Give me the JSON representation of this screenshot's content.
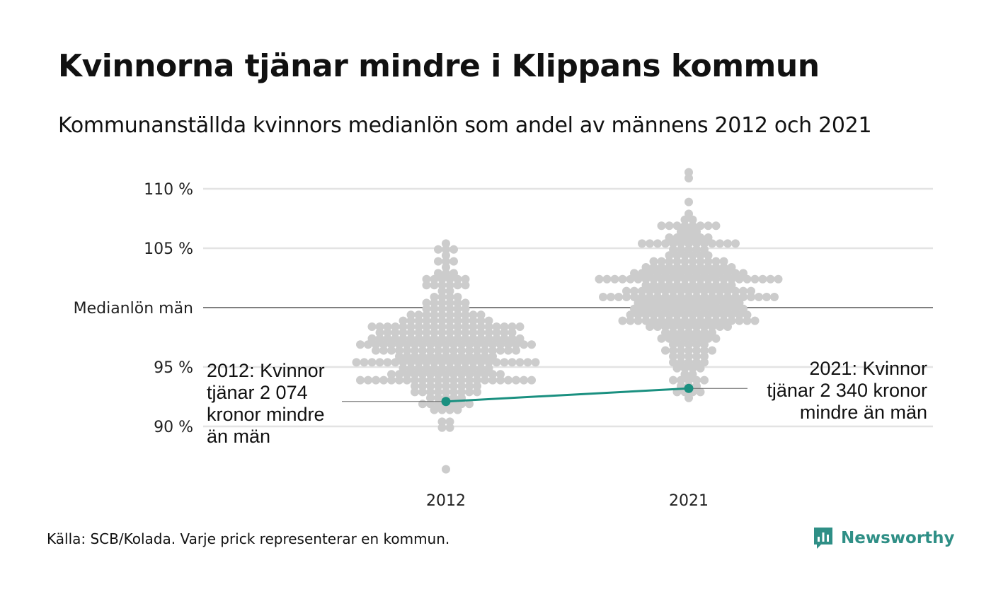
{
  "title": "Kvinnorna tjänar mindre i Klippans kommun",
  "subtitle": "Kommunanställda kvinnors medianlön som andel av männens 2012 och 2021",
  "source": "Källa: SCB/Kolada. Varje prick representerar en kommun.",
  "logo": {
    "text": "Newsworthy",
    "icon": "bar-chart-icon",
    "color": "#2f8f86"
  },
  "chart_data": {
    "type": "scatter",
    "title": "Kvinnorna tjänar mindre i Klippans kommun",
    "subtitle": "Kommunanställda kvinnors medianlön som andel av männens 2012 och 2021",
    "categories": [
      "2012",
      "2021"
    ],
    "ylim": [
      86,
      112
    ],
    "y_ticks": [
      {
        "value": 90,
        "label": "90 %"
      },
      {
        "value": 95,
        "label": "95 %"
      },
      {
        "value": 100,
        "label": "Medianlön män"
      },
      {
        "value": 105,
        "label": "105 %"
      },
      {
        "value": 110,
        "label": "110 %"
      }
    ],
    "grid": true,
    "reference_line": 100,
    "highlight": {
      "name": "Klippan",
      "color": "#1a9080",
      "values": [
        {
          "category": "2012",
          "value": 92.1
        },
        {
          "category": "2021",
          "value": 93.2
        }
      ]
    },
    "annotations": [
      {
        "category": "2012",
        "lines": [
          "2012: Kvinnor",
          "tjänar 2 074",
          "kronor mindre",
          "än män"
        ]
      },
      {
        "category": "2021",
        "lines": [
          "2021: Kvinnor",
          "tjänar 2 340 kronor",
          "mindre än män"
        ]
      }
    ],
    "distribution": {
      "dot_color": "#cccccc",
      "groups": [
        {
          "category": "2012",
          "min": 86.5,
          "max": 105.2,
          "center": 96.5,
          "spread": 3.2,
          "count": 290
        },
        {
          "category": "2021",
          "min": 92.6,
          "max": 111.4,
          "center": 101.3,
          "spread": 3.2,
          "count": 290
        }
      ]
    }
  }
}
